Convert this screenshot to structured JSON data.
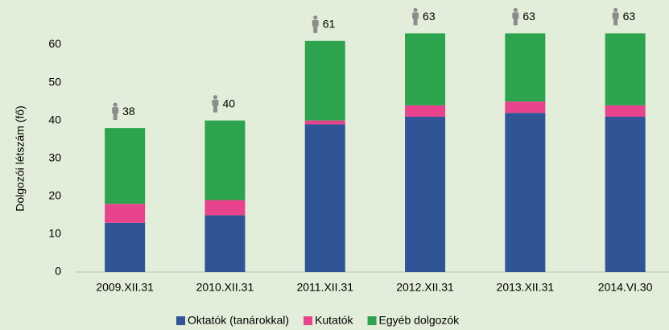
{
  "chart_data": {
    "type": "stacked_bar",
    "y_axis_label": "Dolgozói létszám (fő)",
    "categories": [
      "2009.XII.31",
      "2010.XII.31",
      "2011.XII.31",
      "2012.XII.31",
      "2013.XII.31",
      "2014.VI.30"
    ],
    "series": [
      {
        "name": "Oktatók (tanárokkal)",
        "color": "#2f5597",
        "values": [
          13,
          15,
          39,
          41,
          42,
          41
        ]
      },
      {
        "name": "Kutatók",
        "color": "#e8438c",
        "values": [
          5,
          4,
          1,
          3,
          3,
          3
        ]
      },
      {
        "name": "Egyéb dolgozók",
        "color": "#2ca44e",
        "values": [
          20,
          21,
          21,
          19,
          18,
          19
        ]
      }
    ],
    "totals": [
      38,
      40,
      61,
      63,
      63,
      63
    ],
    "ylim": [
      0,
      65
    ],
    "yticks": [
      0,
      10,
      20,
      30,
      40,
      50,
      60
    ],
    "grid": false,
    "legend": "bottom"
  }
}
